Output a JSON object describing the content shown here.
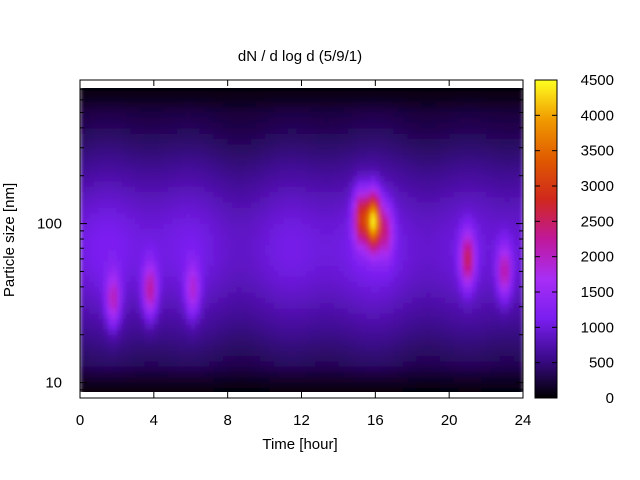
{
  "chart_data": {
    "type": "heatmap",
    "title": "dN / d log d (5/9/1)",
    "xlabel": "Time [hour]",
    "ylabel": "Particle size [nm]",
    "xlim": [
      0,
      24
    ],
    "x_ticks": [
      0,
      4,
      8,
      12,
      16,
      20,
      24
    ],
    "x_tick_labels": [
      "0",
      "4",
      "8",
      "12",
      "16",
      "20",
      "24"
    ],
    "y_scale": "log",
    "ylim": [
      8,
      800
    ],
    "y_ticks": [
      10,
      100
    ],
    "y_tick_labels": [
      "10",
      "100"
    ],
    "colorbar": {
      "range": [
        0,
        4500
      ],
      "ticks": [
        0,
        500,
        1000,
        1500,
        2000,
        2500,
        3000,
        3500,
        4000,
        4500
      ],
      "tick_labels": [
        "0",
        "500",
        "1000",
        "1500",
        "2000",
        "2500",
        "3000",
        "3500",
        "4000",
        "4500"
      ],
      "colormap": [
        "#000000",
        "#3c0a8c",
        "#7a1ef0",
        "#a82ef5",
        "#c0189a",
        "#d0281c",
        "#e05a00",
        "#f09a00",
        "#ffff20"
      ]
    },
    "background_level": 1000,
    "features": [
      {
        "time": 1.8,
        "size_nm": 33,
        "peak": 2100
      },
      {
        "time": 3.8,
        "size_nm": 38,
        "peak": 2300
      },
      {
        "time": 6.1,
        "size_nm": 38,
        "peak": 1900
      },
      {
        "time": 15.2,
        "size_nm": 110,
        "peak": 2800
      },
      {
        "time": 15.9,
        "size_nm": 105,
        "peak": 4200
      },
      {
        "time": 16.6,
        "size_nm": 90,
        "peak": 2000
      },
      {
        "time": 21.0,
        "size_nm": 60,
        "peak": 2500
      },
      {
        "time": 23.0,
        "size_nm": 50,
        "peak": 2200
      }
    ],
    "grid": false,
    "legend": "colorbar-right"
  }
}
